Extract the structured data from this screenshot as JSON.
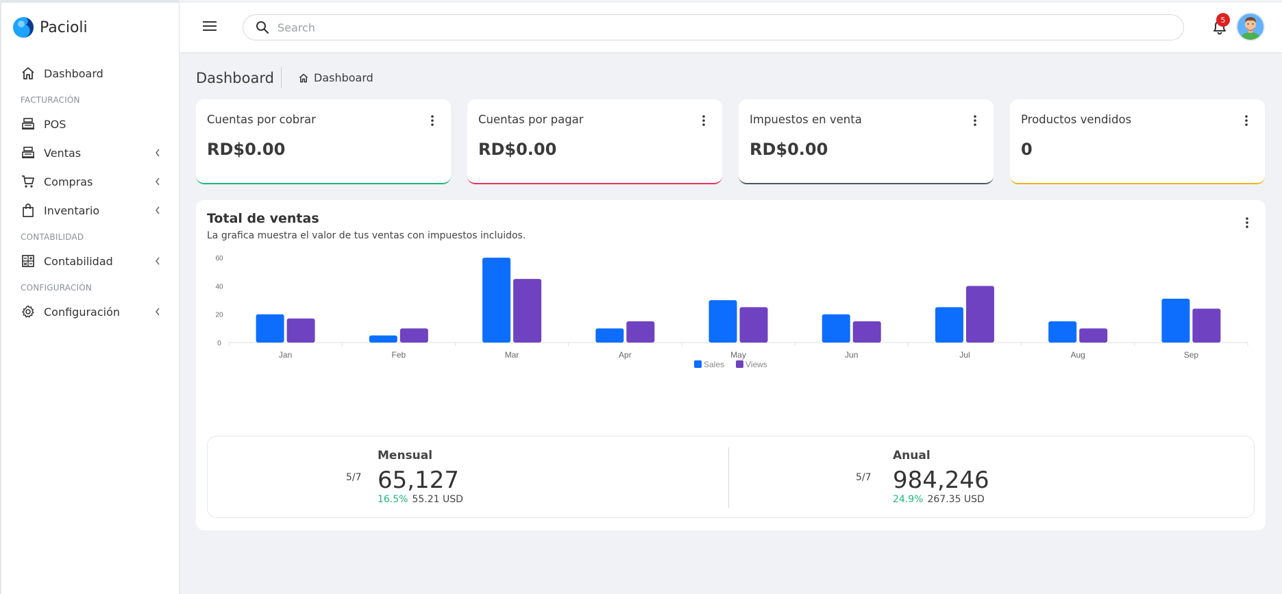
{
  "app": {
    "name": "Pacioli"
  },
  "sidebar": {
    "items": [
      {
        "label": "Dashboard"
      },
      {
        "section": "FACTURACIÓN"
      },
      {
        "label": "POS"
      },
      {
        "label": "Ventas"
      },
      {
        "label": "Compras"
      },
      {
        "label": "Inventario"
      },
      {
        "section": "CONTABILIDAD"
      },
      {
        "label": "Contabilidad"
      },
      {
        "section": "CONFIGURACIÓN"
      },
      {
        "label": "Configuración"
      }
    ]
  },
  "header": {
    "search_placeholder": "Search",
    "notifications_count": "5"
  },
  "page": {
    "title": "Dashboard",
    "breadcrumb": "Dashboard"
  },
  "kpis": [
    {
      "title": "Cuentas por cobrar",
      "value": "RD$0.00",
      "color": "#1db87a"
    },
    {
      "title": "Cuentas por pagar",
      "value": "RD$0.00",
      "color": "#e8335a"
    },
    {
      "title": "Impuestos en venta",
      "value": "RD$0.00",
      "color": "#4a5560"
    },
    {
      "title": "Productos vendidos",
      "value": "0",
      "color": "#f2b31b"
    }
  ],
  "chart_card": {
    "title": "Total de ventas",
    "subtitle": "La grafica muestra el valor de tus ventas con impuestos incluidos."
  },
  "chart_data": {
    "type": "bar",
    "categories": [
      "Jan",
      "Feb",
      "Mar",
      "Apr",
      "May",
      "Jun",
      "Jul",
      "Aug",
      "Sep"
    ],
    "series": [
      {
        "name": "Sales",
        "color": "#0d6efd",
        "values": [
          20,
          5,
          60,
          10,
          30,
          20,
          25,
          15,
          31
        ]
      },
      {
        "name": "Views",
        "color": "#6f42c1",
        "values": [
          17,
          10,
          45,
          15,
          25,
          15,
          40,
          10,
          24
        ]
      }
    ],
    "yticks": [
      0,
      20,
      40,
      60
    ],
    "ylim": [
      0,
      62
    ],
    "legend": "bottom-center"
  },
  "stats": {
    "monthly": {
      "fraction": "5/7",
      "label": "Mensual",
      "value": "65,127",
      "pct": "16.5%",
      "usd": "55.21 USD"
    },
    "annual": {
      "fraction": "5/7",
      "label": "Anual",
      "value": "984,246",
      "pct": "24.9%",
      "usd": "267.35 USD"
    }
  }
}
